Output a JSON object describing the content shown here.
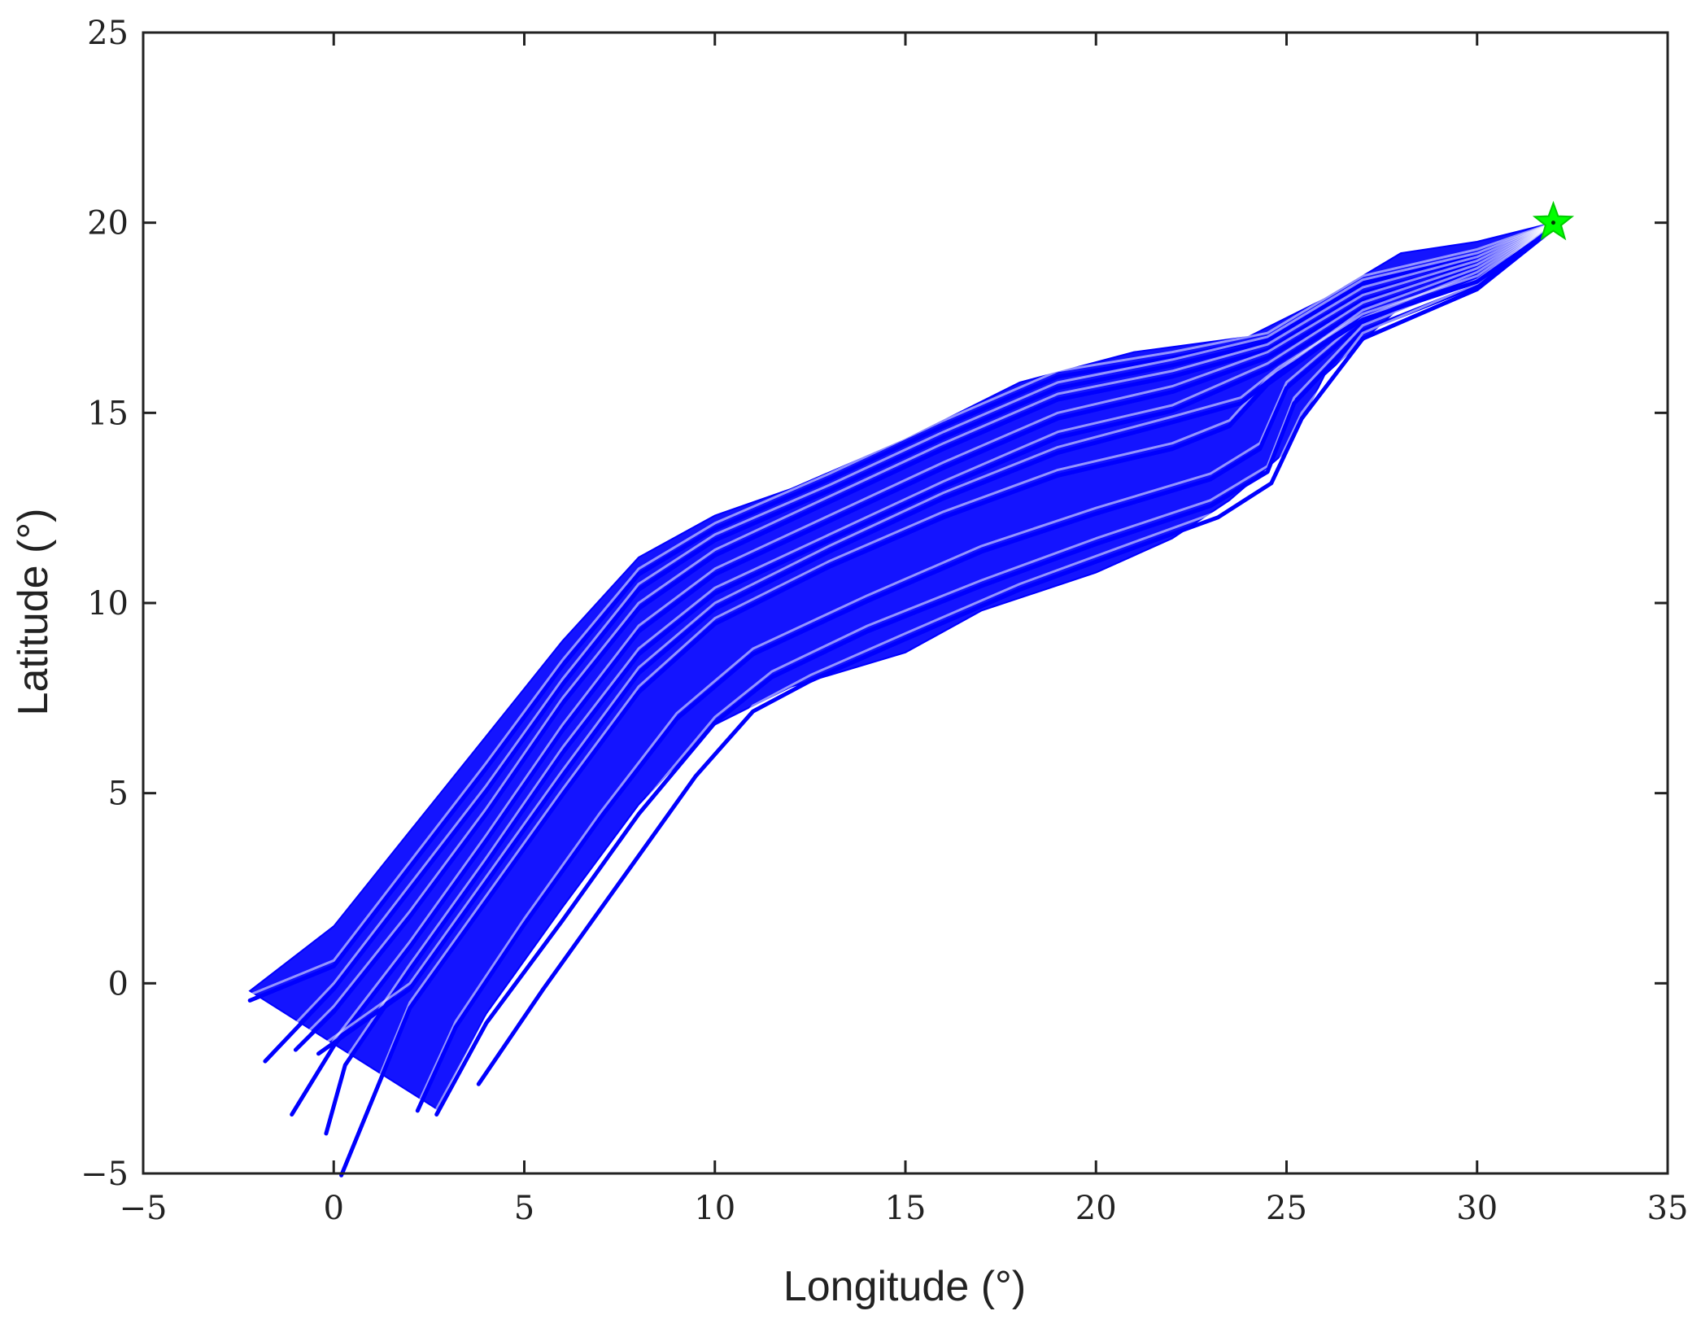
{
  "chart_data": {
    "type": "scatter",
    "title": "",
    "xlabel": "Longitude (°)",
    "ylabel": "Latitude (°)",
    "xlim": [
      -5,
      35
    ],
    "ylim": [
      -5,
      25
    ],
    "xticks": [
      -5,
      0,
      5,
      10,
      15,
      20,
      25,
      30,
      35
    ],
    "yticks": [
      -5,
      0,
      5,
      10,
      15,
      20,
      25
    ],
    "xtick_labels": [
      "−5",
      "0",
      "5",
      "10",
      "15",
      "20",
      "25",
      "30",
      "35"
    ],
    "ytick_labels": [
      "−5",
      "0",
      "5",
      "10",
      "15",
      "20",
      "25"
    ],
    "grid": false,
    "legend": "none",
    "series": [
      {
        "kind": "trajectories",
        "color": "#0000ff",
        "description_note": "ensemble of trajectories from a common origin fanning south-west",
        "origin": [
          32,
          20
        ],
        "upper_envelope": [
          [
            32,
            20
          ],
          [
            30,
            19.5
          ],
          [
            28,
            19.2
          ],
          [
            26,
            18
          ],
          [
            24,
            17
          ],
          [
            21,
            16.6
          ],
          [
            18,
            15.8
          ],
          [
            15,
            14.3
          ],
          [
            12,
            13
          ],
          [
            10,
            12.3
          ],
          [
            8,
            11.2
          ],
          [
            6,
            9
          ],
          [
            4,
            6.5
          ],
          [
            2,
            4
          ],
          [
            0,
            1.5
          ],
          [
            -2.2,
            -0.2
          ]
        ],
        "lower_envelope": [
          [
            32,
            20
          ],
          [
            30,
            18.4
          ],
          [
            28,
            17.8
          ],
          [
            26,
            16
          ],
          [
            25,
            14
          ],
          [
            23.5,
            12.7
          ],
          [
            22,
            11.7
          ],
          [
            20,
            10.8
          ],
          [
            17,
            9.8
          ],
          [
            15,
            8.7
          ],
          [
            12,
            7.8
          ],
          [
            10,
            6.8
          ],
          [
            8,
            4.7
          ],
          [
            6,
            2
          ],
          [
            4,
            -0.8
          ],
          [
            2.7,
            -3.3
          ]
        ],
        "tracks": [
          {
            "start": [
              32,
              20
            ],
            "path": [
              [
                30,
                19.3
              ],
              [
                27,
                18.6
              ],
              [
                24.5,
                17.1
              ],
              [
                22,
                16.6
              ],
              [
                19,
                16.1
              ],
              [
                16,
                14.8
              ],
              [
                13,
                13.4
              ],
              [
                10,
                12.1
              ],
              [
                8,
                10.9
              ],
              [
                6,
                8.5
              ],
              [
                4,
                5.8
              ],
              [
                2,
                3.2
              ],
              [
                0,
                0.6
              ],
              [
                -2.2,
                -0.3
              ]
            ]
          },
          {
            "start": [
              32,
              20
            ],
            "path": [
              [
                30,
                19.2
              ],
              [
                27,
                18.5
              ],
              [
                24.5,
                17
              ],
              [
                22,
                16.4
              ],
              [
                19,
                15.8
              ],
              [
                16,
                14.5
              ],
              [
                13,
                13.1
              ],
              [
                10,
                11.8
              ],
              [
                8,
                10.5
              ],
              [
                6,
                8
              ],
              [
                4,
                5.2
              ],
              [
                2,
                2.6
              ],
              [
                0,
                0
              ],
              [
                -1.8,
                -1.9
              ]
            ]
          },
          {
            "start": [
              32,
              20
            ],
            "path": [
              [
                30,
                19.1
              ],
              [
                27,
                18.3
              ],
              [
                24.5,
                16.8
              ],
              [
                22,
                16.1
              ],
              [
                19,
                15.5
              ],
              [
                16,
                14.2
              ],
              [
                13,
                12.8
              ],
              [
                10,
                11.4
              ],
              [
                8,
                10
              ],
              [
                6,
                7.5
              ],
              [
                4,
                4.6
              ],
              [
                2,
                1.9
              ],
              [
                0,
                -0.6
              ],
              [
                -1,
                -1.6
              ]
            ]
          },
          {
            "start": [
              32,
              20
            ],
            "path": [
              [
                30,
                19
              ],
              [
                27,
                18.1
              ],
              [
                24.5,
                16.6
              ],
              [
                22,
                15.7
              ],
              [
                19,
                15
              ],
              [
                16,
                13.7
              ],
              [
                13,
                12.3
              ],
              [
                10,
                10.9
              ],
              [
                8,
                9.4
              ],
              [
                6,
                6.8
              ],
              [
                4,
                3.9
              ],
              [
                2,
                1.1
              ],
              [
                0,
                -1.5
              ],
              [
                -1.1,
                -3.3
              ]
            ]
          },
          {
            "start": [
              32,
              20
            ],
            "path": [
              [
                30,
                18.9
              ],
              [
                27,
                17.9
              ],
              [
                24.5,
                16.3
              ],
              [
                22,
                15.2
              ],
              [
                19,
                14.5
              ],
              [
                16,
                13.2
              ],
              [
                13,
                11.8
              ],
              [
                10,
                10.4
              ],
              [
                8,
                8.8
              ],
              [
                6,
                6.2
              ],
              [
                4,
                3.3
              ],
              [
                2,
                0.5
              ],
              [
                0.3,
                -2
              ],
              [
                -0.2,
                -3.8
              ]
            ]
          },
          {
            "start": [
              32,
              20
            ],
            "path": [
              [
                30,
                18.8
              ],
              [
                27,
                17.7
              ],
              [
                24.5,
                15.9
              ],
              [
                23.5,
                14.8
              ],
              [
                22,
                14.2
              ],
              [
                19,
                13.5
              ],
              [
                16,
                12.4
              ],
              [
                13,
                11.1
              ],
              [
                10,
                9.6
              ],
              [
                8,
                7.8
              ],
              [
                6,
                5.1
              ],
              [
                4,
                2.3
              ],
              [
                2,
                -0.5
              ],
              [
                0.2,
                -4.9
              ]
            ]
          },
          {
            "start": [
              32,
              20
            ],
            "path": [
              [
                30,
                18.7
              ],
              [
                27,
                17.5
              ],
              [
                25,
                15.8
              ],
              [
                24.3,
                14.2
              ],
              [
                23,
                13.4
              ],
              [
                20,
                12.5
              ],
              [
                17,
                11.5
              ],
              [
                14,
                10.2
              ],
              [
                11,
                8.8
              ],
              [
                9,
                7.1
              ],
              [
                7,
                4.5
              ],
              [
                5,
                1.7
              ],
              [
                3.2,
                -1
              ],
              [
                2.2,
                -3.2
              ]
            ]
          },
          {
            "start": [
              32,
              20
            ],
            "path": [
              [
                30,
                18.5
              ],
              [
                27,
                17.3
              ],
              [
                25.2,
                15.4
              ],
              [
                24.5,
                13.6
              ],
              [
                23,
                12.7
              ],
              [
                20,
                11.7
              ],
              [
                17,
                10.6
              ],
              [
                14,
                9.4
              ],
              [
                11.5,
                8.2
              ],
              [
                10,
                7
              ],
              [
                8,
                4.6
              ],
              [
                6,
                1.8
              ],
              [
                4,
                -0.9
              ],
              [
                2.7,
                -3.3
              ]
            ]
          },
          {
            "start": [
              32,
              20
            ],
            "path": [
              [
                30,
                18.4
              ],
              [
                27,
                17.1
              ],
              [
                25.4,
                15
              ],
              [
                24.6,
                13.3
              ],
              [
                23.2,
                12.4
              ],
              [
                21,
                11.6
              ],
              [
                18,
                10.5
              ],
              [
                15,
                9.2
              ],
              [
                12.5,
                8.1
              ],
              [
                11,
                7.3
              ],
              [
                9.5,
                5.6
              ],
              [
                7.5,
                2.8
              ],
              [
                5.5,
                0
              ],
              [
                3.8,
                -2.5
              ]
            ]
          },
          {
            "start": [
              32,
              20
            ],
            "path": [
              [
                30,
                18.6
              ],
              [
                27,
                17.6
              ],
              [
                24.8,
                16.2
              ],
              [
                23.8,
                15.4
              ],
              [
                22,
                14.9
              ],
              [
                19,
                14.1
              ],
              [
                16,
                12.9
              ],
              [
                13,
                11.5
              ],
              [
                10,
                10
              ],
              [
                8,
                8.3
              ],
              [
                6,
                5.6
              ],
              [
                4,
                2.8
              ],
              [
                2,
                0
              ],
              [
                -0.4,
                -1.7
              ]
            ]
          }
        ]
      },
      {
        "kind": "marker",
        "shape": "star",
        "color": "#00ff00",
        "points": [
          [
            32,
            20
          ]
        ]
      }
    ]
  }
}
